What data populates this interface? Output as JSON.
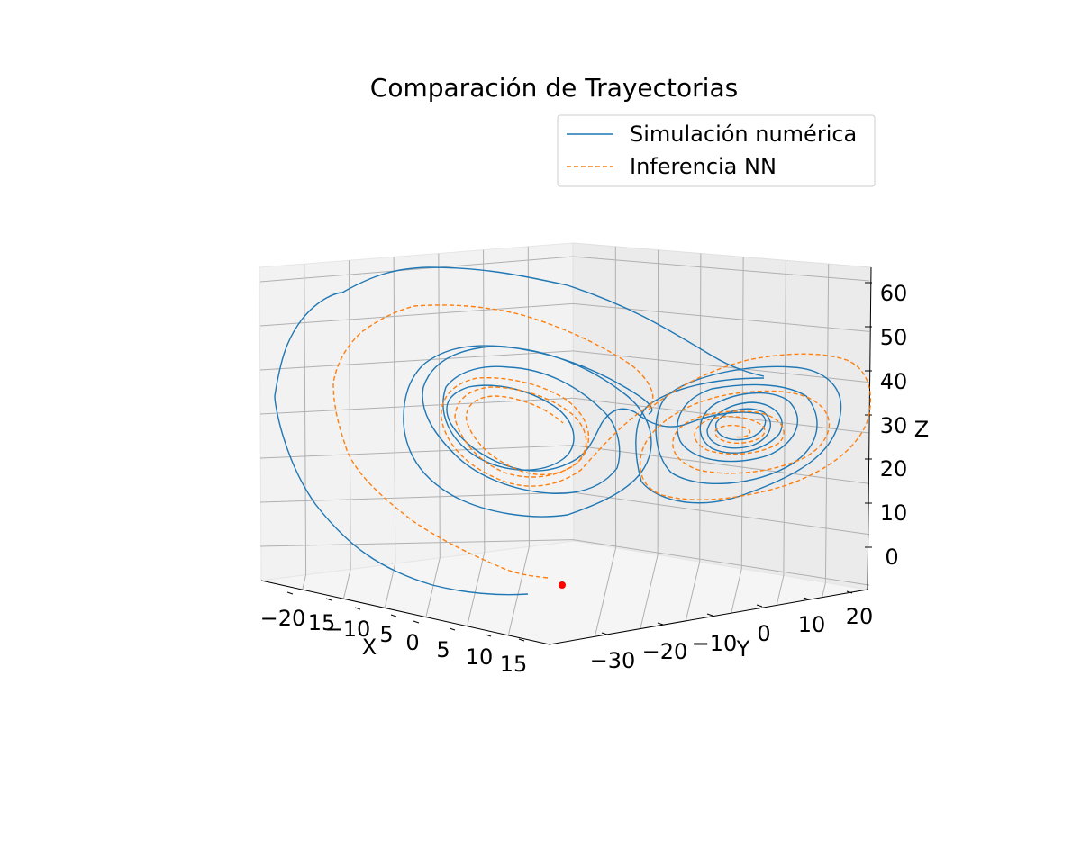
{
  "chart_data": {
    "type": "line",
    "projection": "3d",
    "title": "Comparación de Trayectorias",
    "xlabel": "X",
    "ylabel": "Y",
    "zlabel": "Z",
    "xlim": [
      -25,
      20
    ],
    "ylim": [
      -40,
      25
    ],
    "zlim": [
      -5,
      65
    ],
    "xticks": [
      "−20",
      "15",
      "−10",
      "5",
      "0",
      "5",
      "10",
      "15"
    ],
    "yticks": [
      "−30",
      "−20",
      "−10",
      "0",
      "10",
      "20"
    ],
    "zticks": [
      "0",
      "10",
      "20",
      "30",
      "40",
      "50",
      "60"
    ],
    "grid": true,
    "legend_position": "top-right",
    "series": [
      {
        "name": "Simulación numérica",
        "style": "solid",
        "color": "#1f77b4"
      },
      {
        "name": "Inferencia NN",
        "style": "dashed",
        "color": "#ff7f0e"
      }
    ],
    "marker": {
      "color": "#ff0000",
      "x": 15,
      "y": -30,
      "z": 0
    }
  }
}
